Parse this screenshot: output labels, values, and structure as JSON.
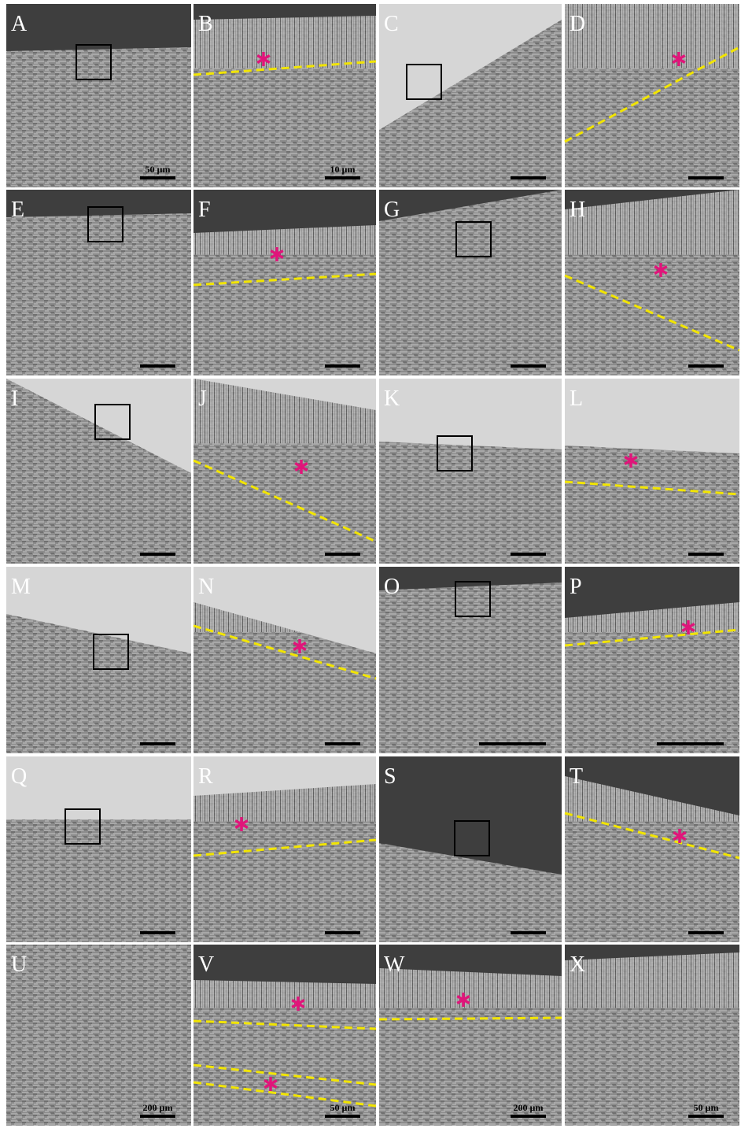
{
  "panels": [
    {
      "label": "A",
      "scale_label": "50 µm"
    },
    {
      "label": "B",
      "scale_label": "10 µm"
    },
    {
      "label": "C"
    },
    {
      "label": "D"
    },
    {
      "label": "E"
    },
    {
      "label": "F"
    },
    {
      "label": "G"
    },
    {
      "label": "H"
    },
    {
      "label": "I"
    },
    {
      "label": "J"
    },
    {
      "label": "K"
    },
    {
      "label": "L"
    },
    {
      "label": "M"
    },
    {
      "label": "N"
    },
    {
      "label": "O"
    },
    {
      "label": "P"
    },
    {
      "label": "Q"
    },
    {
      "label": "R"
    },
    {
      "label": "S"
    },
    {
      "label": "T"
    },
    {
      "label": "U",
      "scale_label": "200 µm"
    },
    {
      "label": "V",
      "scale_label": "50 µm"
    },
    {
      "label": "W",
      "scale_label": "200 µm"
    },
    {
      "label": "X",
      "scale_label": "50 µm"
    }
  ]
}
